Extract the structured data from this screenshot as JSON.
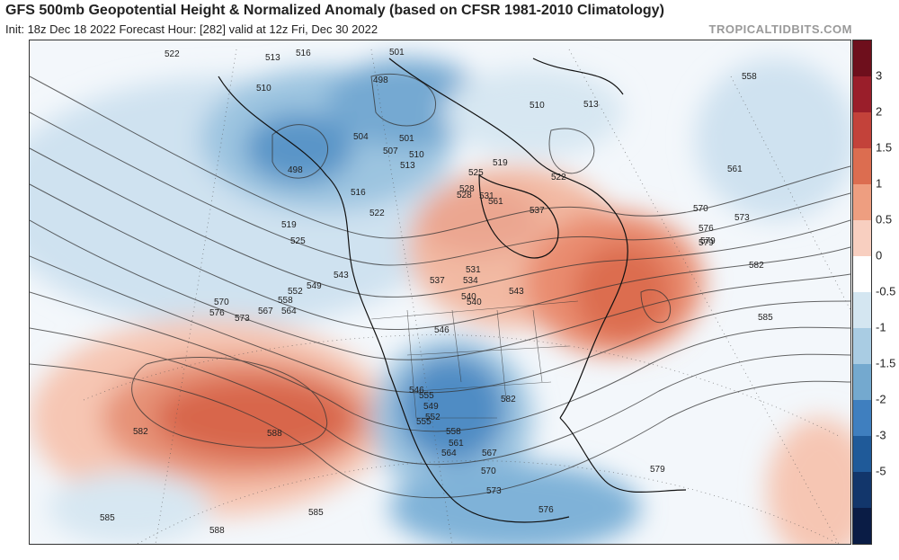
{
  "header": {
    "title": "GFS 500mb Geopotential Height & Normalized Anomaly (based on CFSR 1981-2010 Climatology)",
    "subtitle": "Init: 18z Dec 18 2022   Forecast Hour: [282]   valid at 12z Fri, Dec 30 2022",
    "credit": "TROPICALTIDBITS.COM"
  },
  "colorbar": {
    "ticks": [
      "3",
      "2",
      "1.5",
      "1",
      "0.5",
      "0",
      "-0.5",
      "-1",
      "-1.5",
      "-2",
      "-3",
      "-5"
    ],
    "colors": [
      "#6e0f1c",
      "#9a1e2a",
      "#c3423a",
      "#dc6d50",
      "#ee9e80",
      "#f8cfc0",
      "#ffffff",
      "#d4e6f1",
      "#a9cce3",
      "#74a9cf",
      "#3f7fbf",
      "#1f5a99",
      "#12366b",
      "#0a1c45"
    ]
  },
  "map": {
    "contour_labels": [
      "522",
      "513",
      "516",
      "501",
      "498",
      "510",
      "498",
      "504",
      "501",
      "507",
      "510",
      "513",
      "516",
      "519",
      "522",
      "525",
      "528",
      "531",
      "534",
      "537",
      "540",
      "543",
      "546",
      "549",
      "552",
      "555",
      "558",
      "561",
      "564",
      "567",
      "570",
      "573",
      "576",
      "579",
      "582",
      "585",
      "588",
      "510",
      "513",
      "558",
      "561",
      "570",
      "573",
      "576",
      "579",
      "582",
      "585",
      "519",
      "522",
      "525",
      "528",
      "531",
      "537",
      "540",
      "543",
      "546",
      "549",
      "552",
      "555",
      "558",
      "561",
      "564",
      "567",
      "570",
      "573",
      "576",
      "579",
      "582",
      "585",
      "588",
      "585",
      "582",
      "582"
    ]
  }
}
